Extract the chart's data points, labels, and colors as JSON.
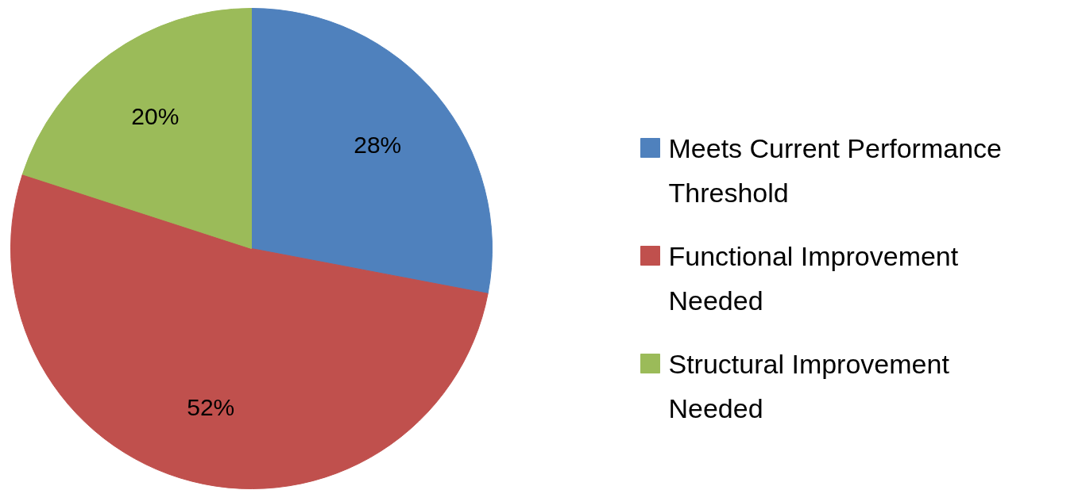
{
  "chart_data": {
    "type": "pie",
    "categories": [
      "Meets Current Performance Threshold",
      "Functional Improvement Needed",
      "Structural Improvement Needed"
    ],
    "values": [
      28,
      52,
      20
    ],
    "colors": [
      "#4f81bd",
      "#c0504d",
      "#9bbb59"
    ],
    "value_labels": [
      "28%",
      "52%",
      "20%"
    ],
    "legend": "right"
  }
}
